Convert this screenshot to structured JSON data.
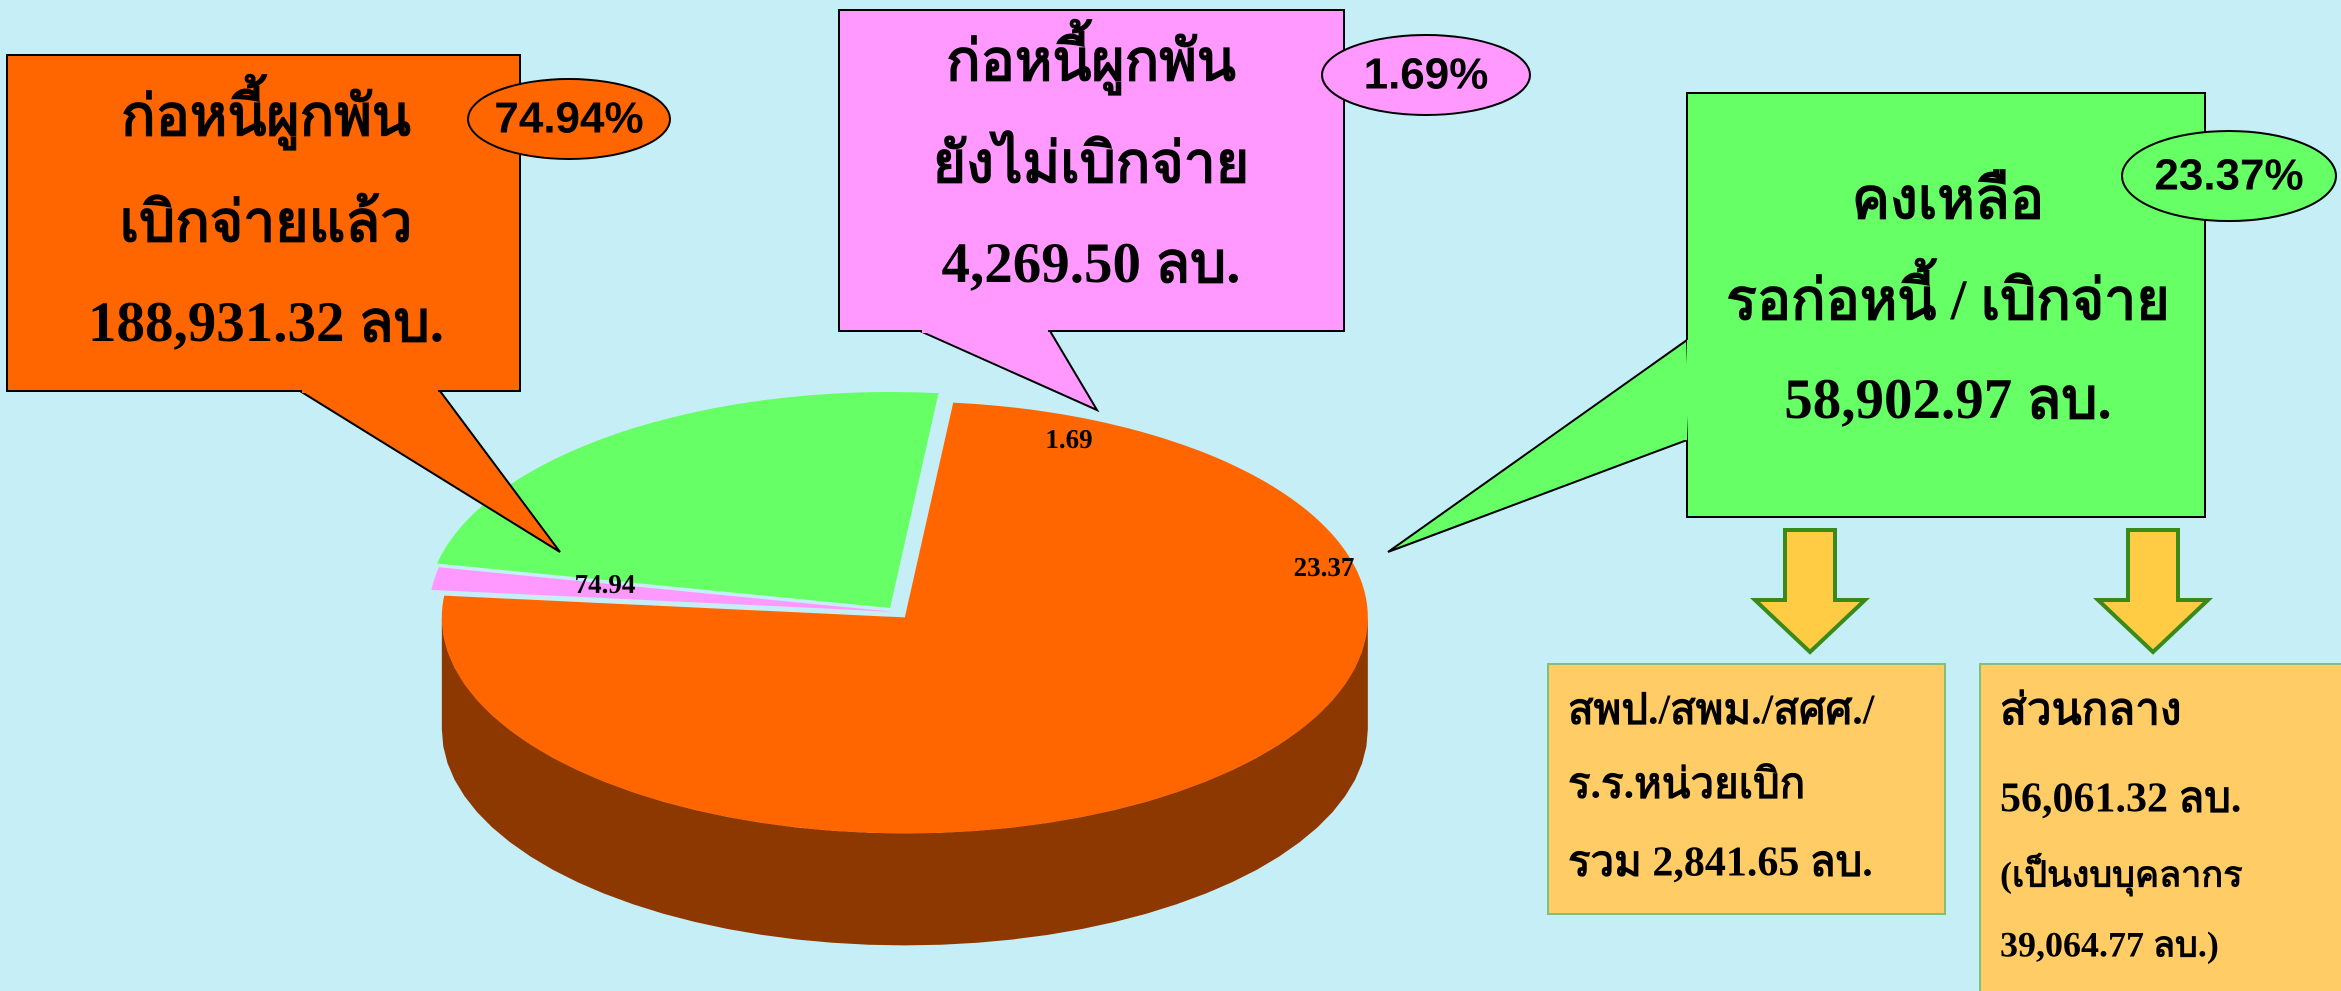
{
  "chart_data": {
    "type": "pie",
    "values": [
      74.94,
      1.69,
      23.37
    ],
    "value_labels": [
      "74.94%",
      "1.69%",
      "23.37%"
    ],
    "colors": [
      "#ff6600",
      "#ff99ff",
      "#66ff66"
    ],
    "callouts": [
      {
        "lines": [
          "ก่อหนี้ผูกพัน",
          "เบิกจ่ายแล้ว",
          "188,931.32 ลบ."
        ]
      },
      {
        "lines": [
          "ก่อหนี้ผูกพัน",
          "ยังไม่เบิกจ่าย",
          "4,269.50 ลบ."
        ]
      },
      {
        "lines": [
          "คงเหลือ",
          "รอก่อหนี้ / เบิกจ่าย",
          "58,902.97 ลบ."
        ]
      }
    ],
    "sub_boxes": [
      {
        "lines": [
          "สพป./สพม./สศศ./",
          "ร.ร.หน่วยเบิก",
          "รวม 2,841.65 ลบ."
        ]
      },
      {
        "lines": [
          "ส่วนกลาง",
          "56,061.32 ลบ.",
          "(เป็นงบบุคลากร",
          "39,064.77 ลบ.)"
        ]
      }
    ]
  }
}
